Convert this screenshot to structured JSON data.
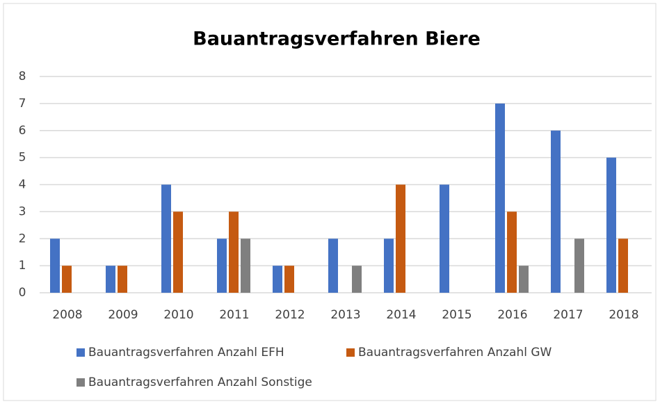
{
  "chart_data": {
    "type": "bar",
    "title": "Bauantragsverfahren Biere",
    "categories": [
      "2008",
      "2009",
      "2010",
      "2011",
      "2012",
      "2013",
      "2014",
      "2015",
      "2016",
      "2017",
      "2018"
    ],
    "series": [
      {
        "name": "Bauantragsverfahren Anzahl EFH",
        "color": "#4472c4",
        "values": [
          2,
          1,
          4,
          2,
          1,
          2,
          2,
          4,
          7,
          6,
          5
        ]
      },
      {
        "name": "Bauantragsverfahren Anzahl GW",
        "color": "#c55a11",
        "values": [
          1,
          1,
          3,
          3,
          1,
          0,
          4,
          0,
          3,
          0,
          2
        ]
      },
      {
        "name": "Bauantragsverfahren Anzahl Sonstige",
        "color": "#7f7f7f",
        "values": [
          0,
          0,
          0,
          2,
          0,
          1,
          0,
          0,
          1,
          2,
          0
        ]
      }
    ],
    "ylim": [
      0,
      8
    ],
    "yticks": [
      0,
      1,
      2,
      3,
      4,
      5,
      6,
      7,
      8
    ],
    "grid": true,
    "legend": "bottom"
  }
}
